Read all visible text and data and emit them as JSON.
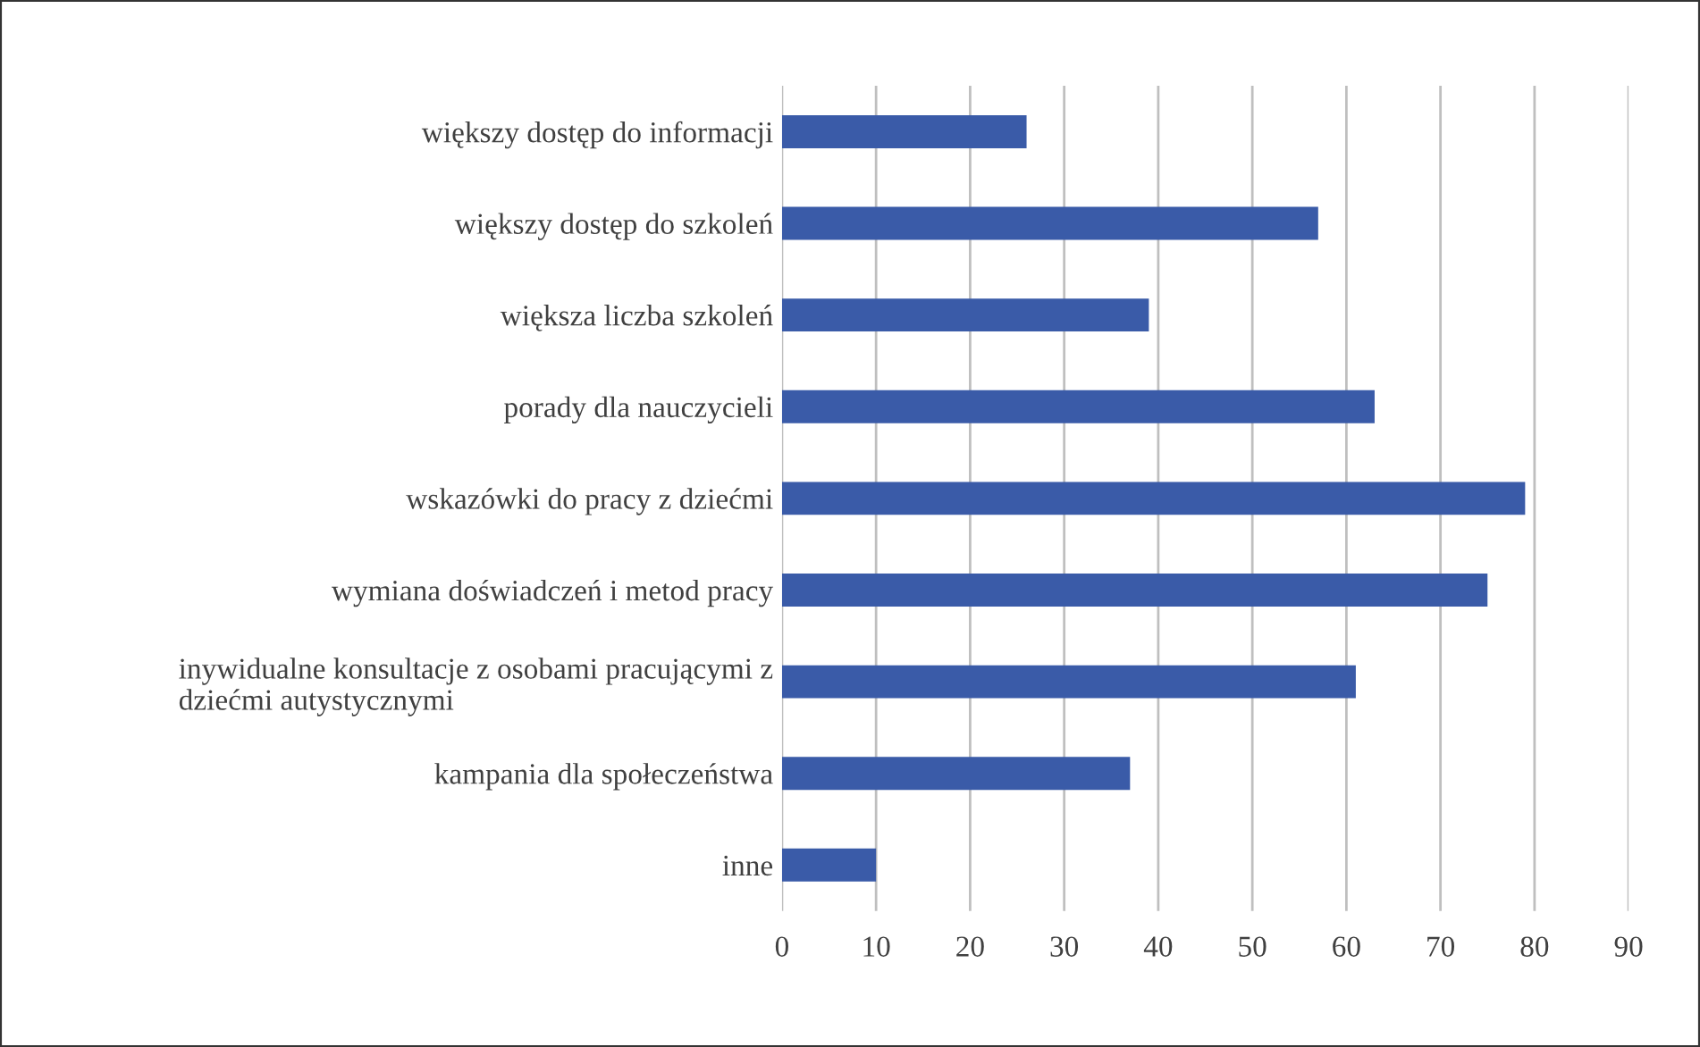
{
  "chart_data": {
    "type": "bar",
    "orientation": "horizontal",
    "categories": [
      "większy dostęp do informacji",
      "większy dostęp do szkoleń",
      "większa liczba szkoleń",
      "porady dla nauczycieli",
      "wskazówki do pracy z dziećmi",
      "wymiana doświadczeń i metod pracy",
      "inywidualne konsultacje z osobami pracującymi z\ndziećmi autystycznymi",
      "kampania dla społeczeństwa",
      "inne"
    ],
    "values": [
      26,
      57,
      39,
      63,
      79,
      75,
      61,
      37,
      10
    ],
    "color": "#3a5ba8",
    "xlim": [
      0,
      90
    ],
    "xticks": [
      0,
      10,
      20,
      30,
      40,
      50,
      60,
      70,
      80,
      90
    ],
    "grid": "x",
    "legend": false
  }
}
